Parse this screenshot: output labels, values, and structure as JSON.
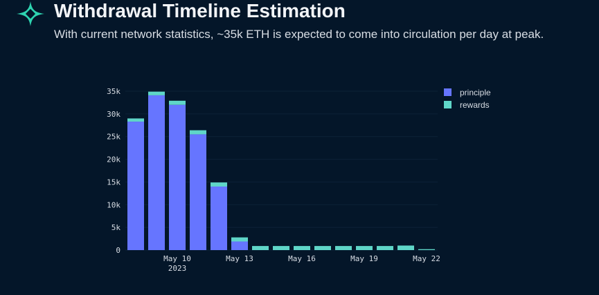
{
  "header": {
    "title": "Withdrawal Timeline Estimation",
    "subtitle": "With current network statistics, ~35k ETH is expected to come into circulation per day at peak."
  },
  "colors": {
    "principle": "#6675ff",
    "rewards": "#5fd6c8",
    "logo": "#2ed3b0"
  },
  "chart_data": {
    "type": "bar",
    "stacked": true,
    "categories": [
      "May 8",
      "May 9",
      "May 10",
      "May 11",
      "May 12",
      "May 13",
      "May 14",
      "May 15",
      "May 16",
      "May 17",
      "May 18",
      "May 19",
      "May 20",
      "May 21",
      "May 22"
    ],
    "series": [
      {
        "name": "principle",
        "values": [
          28300,
          34100,
          32000,
          25500,
          14000,
          1900,
          0,
          0,
          0,
          0,
          0,
          0,
          0,
          0,
          0
        ]
      },
      {
        "name": "rewards",
        "values": [
          700,
          800,
          900,
          900,
          900,
          900,
          900,
          900,
          900,
          900,
          900,
          900,
          900,
          1000,
          200
        ]
      }
    ],
    "ylim": [
      0,
      35000
    ],
    "yticks": [
      0,
      5000,
      10000,
      15000,
      20000,
      25000,
      30000,
      35000
    ],
    "ytick_labels": [
      "0",
      "5k",
      "10k",
      "15k",
      "20k",
      "25k",
      "30k",
      "35k"
    ],
    "xtick_labels": [
      {
        "at": "May 10",
        "label": "May 10",
        "sub": "2023"
      },
      {
        "at": "May 13",
        "label": "May 13"
      },
      {
        "at": "May 16",
        "label": "May 16"
      },
      {
        "at": "May 19",
        "label": "May 19"
      },
      {
        "at": "May 22",
        "label": "May 22"
      }
    ],
    "legend_position": "top-right",
    "grid": true
  }
}
